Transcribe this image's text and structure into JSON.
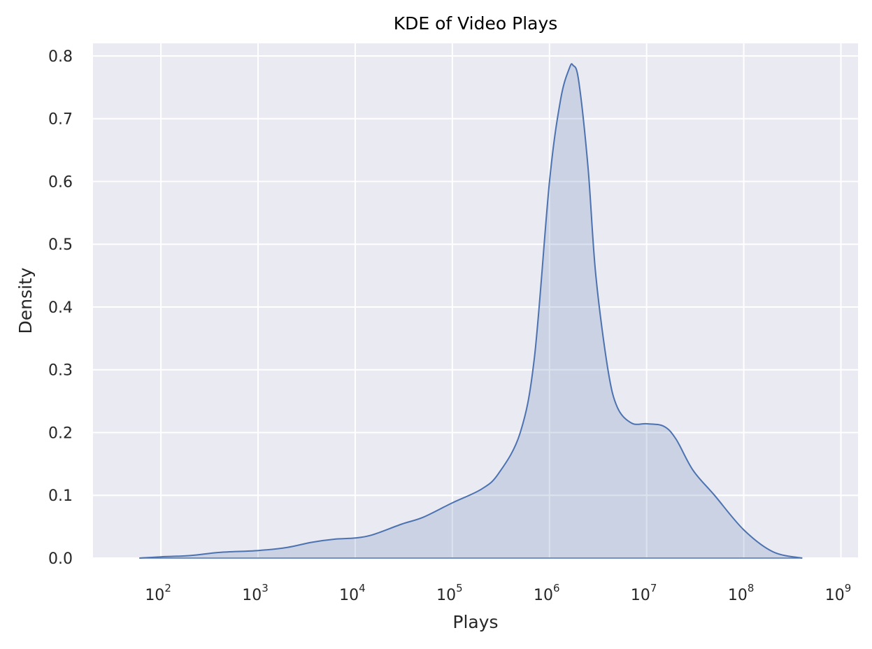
{
  "chart_data": {
    "type": "area",
    "title": "KDE of Video Plays",
    "xlabel": "Plays",
    "ylabel": "Density",
    "x_scale": "log",
    "xlim": [
      20,
      1500000000
    ],
    "ylim": [
      0,
      0.82
    ],
    "x_ticks": [
      {
        "value": 100,
        "base": "10",
        "exp": "2"
      },
      {
        "value": 1000,
        "base": "10",
        "exp": "3"
      },
      {
        "value": 10000,
        "base": "10",
        "exp": "4"
      },
      {
        "value": 100000,
        "base": "10",
        "exp": "5"
      },
      {
        "value": 1000000,
        "base": "10",
        "exp": "6"
      },
      {
        "value": 10000000,
        "base": "10",
        "exp": "7"
      },
      {
        "value": 100000000,
        "base": "10",
        "exp": "8"
      },
      {
        "value": 1000000000,
        "base": "10",
        "exp": "9"
      }
    ],
    "y_ticks": [
      {
        "value": 0.0,
        "label": "0.0"
      },
      {
        "value": 0.1,
        "label": "0.1"
      },
      {
        "value": 0.2,
        "label": "0.2"
      },
      {
        "value": 0.3,
        "label": "0.3"
      },
      {
        "value": 0.4,
        "label": "0.4"
      },
      {
        "value": 0.5,
        "label": "0.5"
      },
      {
        "value": 0.6,
        "label": "0.6"
      },
      {
        "value": 0.7,
        "label": "0.7"
      },
      {
        "value": 0.8,
        "label": "0.8"
      }
    ],
    "grid": true,
    "colors": {
      "background": "#eaeaf2",
      "grid": "#ffffff",
      "line": "#4c72b0",
      "fill": "#4c72b0"
    },
    "series": [
      {
        "x": [
          60,
          100,
          200,
          400,
          1000,
          2000,
          3500,
          6000,
          10000,
          15000,
          30000,
          50000,
          100000,
          200000,
          300000,
          500000,
          700000,
          1000000,
          1300000,
          1600000,
          1750000,
          2000000,
          2500000,
          3000000,
          4000000,
          5000000,
          7000000,
          10000000,
          15000000,
          20000000,
          30000000,
          50000000,
          100000000,
          200000000,
          400000000
        ],
        "y": [
          0.0,
          0.002,
          0.004,
          0.009,
          0.012,
          0.017,
          0.025,
          0.03,
          0.032,
          0.037,
          0.054,
          0.065,
          0.088,
          0.11,
          0.135,
          0.2,
          0.32,
          0.6,
          0.73,
          0.78,
          0.785,
          0.76,
          0.62,
          0.45,
          0.3,
          0.24,
          0.215,
          0.214,
          0.21,
          0.19,
          0.14,
          0.1,
          0.045,
          0.01,
          0.0
        ]
      }
    ]
  }
}
